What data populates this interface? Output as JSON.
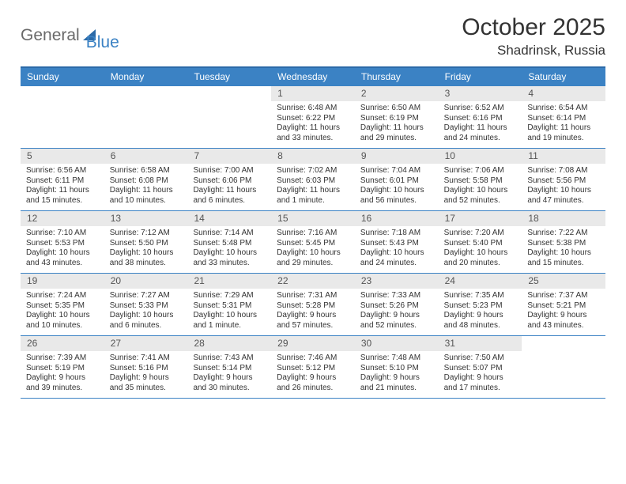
{
  "brand": {
    "text1": "General",
    "text2": "Blue"
  },
  "title": "October 2025",
  "location": "Shadrinsk, Russia",
  "colors": {
    "header_bg": "#3b82c4",
    "header_text": "#ffffff",
    "border": "#2b6aa8",
    "daynum_bg": "#e9e9e9",
    "daynum_text": "#555555",
    "body_text": "#333333",
    "page_bg": "#ffffff",
    "brand_gray": "#6a6a6a",
    "brand_blue": "#3b82c4"
  },
  "typography": {
    "title_fontsize": 30,
    "location_fontsize": 17,
    "dayhead_fontsize": 12,
    "daynum_fontsize": 12,
    "body_fontsize": 10
  },
  "day_headers": [
    "Sunday",
    "Monday",
    "Tuesday",
    "Wednesday",
    "Thursday",
    "Friday",
    "Saturday"
  ],
  "weeks": [
    [
      {
        "blank": true
      },
      {
        "blank": true
      },
      {
        "blank": true
      },
      {
        "n": "1",
        "sunrise": "6:48 AM",
        "sunset": "6:22 PM",
        "daylight": "11 hours and 33 minutes."
      },
      {
        "n": "2",
        "sunrise": "6:50 AM",
        "sunset": "6:19 PM",
        "daylight": "11 hours and 29 minutes."
      },
      {
        "n": "3",
        "sunrise": "6:52 AM",
        "sunset": "6:16 PM",
        "daylight": "11 hours and 24 minutes."
      },
      {
        "n": "4",
        "sunrise": "6:54 AM",
        "sunset": "6:14 PM",
        "daylight": "11 hours and 19 minutes."
      }
    ],
    [
      {
        "n": "5",
        "sunrise": "6:56 AM",
        "sunset": "6:11 PM",
        "daylight": "11 hours and 15 minutes."
      },
      {
        "n": "6",
        "sunrise": "6:58 AM",
        "sunset": "6:08 PM",
        "daylight": "11 hours and 10 minutes."
      },
      {
        "n": "7",
        "sunrise": "7:00 AM",
        "sunset": "6:06 PM",
        "daylight": "11 hours and 6 minutes."
      },
      {
        "n": "8",
        "sunrise": "7:02 AM",
        "sunset": "6:03 PM",
        "daylight": "11 hours and 1 minute."
      },
      {
        "n": "9",
        "sunrise": "7:04 AM",
        "sunset": "6:01 PM",
        "daylight": "10 hours and 56 minutes."
      },
      {
        "n": "10",
        "sunrise": "7:06 AM",
        "sunset": "5:58 PM",
        "daylight": "10 hours and 52 minutes."
      },
      {
        "n": "11",
        "sunrise": "7:08 AM",
        "sunset": "5:56 PM",
        "daylight": "10 hours and 47 minutes."
      }
    ],
    [
      {
        "n": "12",
        "sunrise": "7:10 AM",
        "sunset": "5:53 PM",
        "daylight": "10 hours and 43 minutes."
      },
      {
        "n": "13",
        "sunrise": "7:12 AM",
        "sunset": "5:50 PM",
        "daylight": "10 hours and 38 minutes."
      },
      {
        "n": "14",
        "sunrise": "7:14 AM",
        "sunset": "5:48 PM",
        "daylight": "10 hours and 33 minutes."
      },
      {
        "n": "15",
        "sunrise": "7:16 AM",
        "sunset": "5:45 PM",
        "daylight": "10 hours and 29 minutes."
      },
      {
        "n": "16",
        "sunrise": "7:18 AM",
        "sunset": "5:43 PM",
        "daylight": "10 hours and 24 minutes."
      },
      {
        "n": "17",
        "sunrise": "7:20 AM",
        "sunset": "5:40 PM",
        "daylight": "10 hours and 20 minutes."
      },
      {
        "n": "18",
        "sunrise": "7:22 AM",
        "sunset": "5:38 PM",
        "daylight": "10 hours and 15 minutes."
      }
    ],
    [
      {
        "n": "19",
        "sunrise": "7:24 AM",
        "sunset": "5:35 PM",
        "daylight": "10 hours and 10 minutes."
      },
      {
        "n": "20",
        "sunrise": "7:27 AM",
        "sunset": "5:33 PM",
        "daylight": "10 hours and 6 minutes."
      },
      {
        "n": "21",
        "sunrise": "7:29 AM",
        "sunset": "5:31 PM",
        "daylight": "10 hours and 1 minute."
      },
      {
        "n": "22",
        "sunrise": "7:31 AM",
        "sunset": "5:28 PM",
        "daylight": "9 hours and 57 minutes."
      },
      {
        "n": "23",
        "sunrise": "7:33 AM",
        "sunset": "5:26 PM",
        "daylight": "9 hours and 52 minutes."
      },
      {
        "n": "24",
        "sunrise": "7:35 AM",
        "sunset": "5:23 PM",
        "daylight": "9 hours and 48 minutes."
      },
      {
        "n": "25",
        "sunrise": "7:37 AM",
        "sunset": "5:21 PM",
        "daylight": "9 hours and 43 minutes."
      }
    ],
    [
      {
        "n": "26",
        "sunrise": "7:39 AM",
        "sunset": "5:19 PM",
        "daylight": "9 hours and 39 minutes."
      },
      {
        "n": "27",
        "sunrise": "7:41 AM",
        "sunset": "5:16 PM",
        "daylight": "9 hours and 35 minutes."
      },
      {
        "n": "28",
        "sunrise": "7:43 AM",
        "sunset": "5:14 PM",
        "daylight": "9 hours and 30 minutes."
      },
      {
        "n": "29",
        "sunrise": "7:46 AM",
        "sunset": "5:12 PM",
        "daylight": "9 hours and 26 minutes."
      },
      {
        "n": "30",
        "sunrise": "7:48 AM",
        "sunset": "5:10 PM",
        "daylight": "9 hours and 21 minutes."
      },
      {
        "n": "31",
        "sunrise": "7:50 AM",
        "sunset": "5:07 PM",
        "daylight": "9 hours and 17 minutes."
      },
      {
        "blank": true
      }
    ]
  ],
  "labels": {
    "sunrise": "Sunrise:",
    "sunset": "Sunset:",
    "daylight": "Daylight:"
  }
}
